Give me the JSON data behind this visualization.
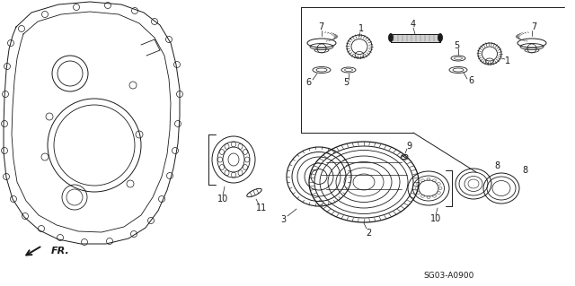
{
  "background_color": "#ffffff",
  "line_color": "#1a1a1a",
  "diagram_code": "SG03-A0900",
  "fr_label": "FR.",
  "figsize": [
    6.4,
    3.19
  ],
  "dpi": 100
}
